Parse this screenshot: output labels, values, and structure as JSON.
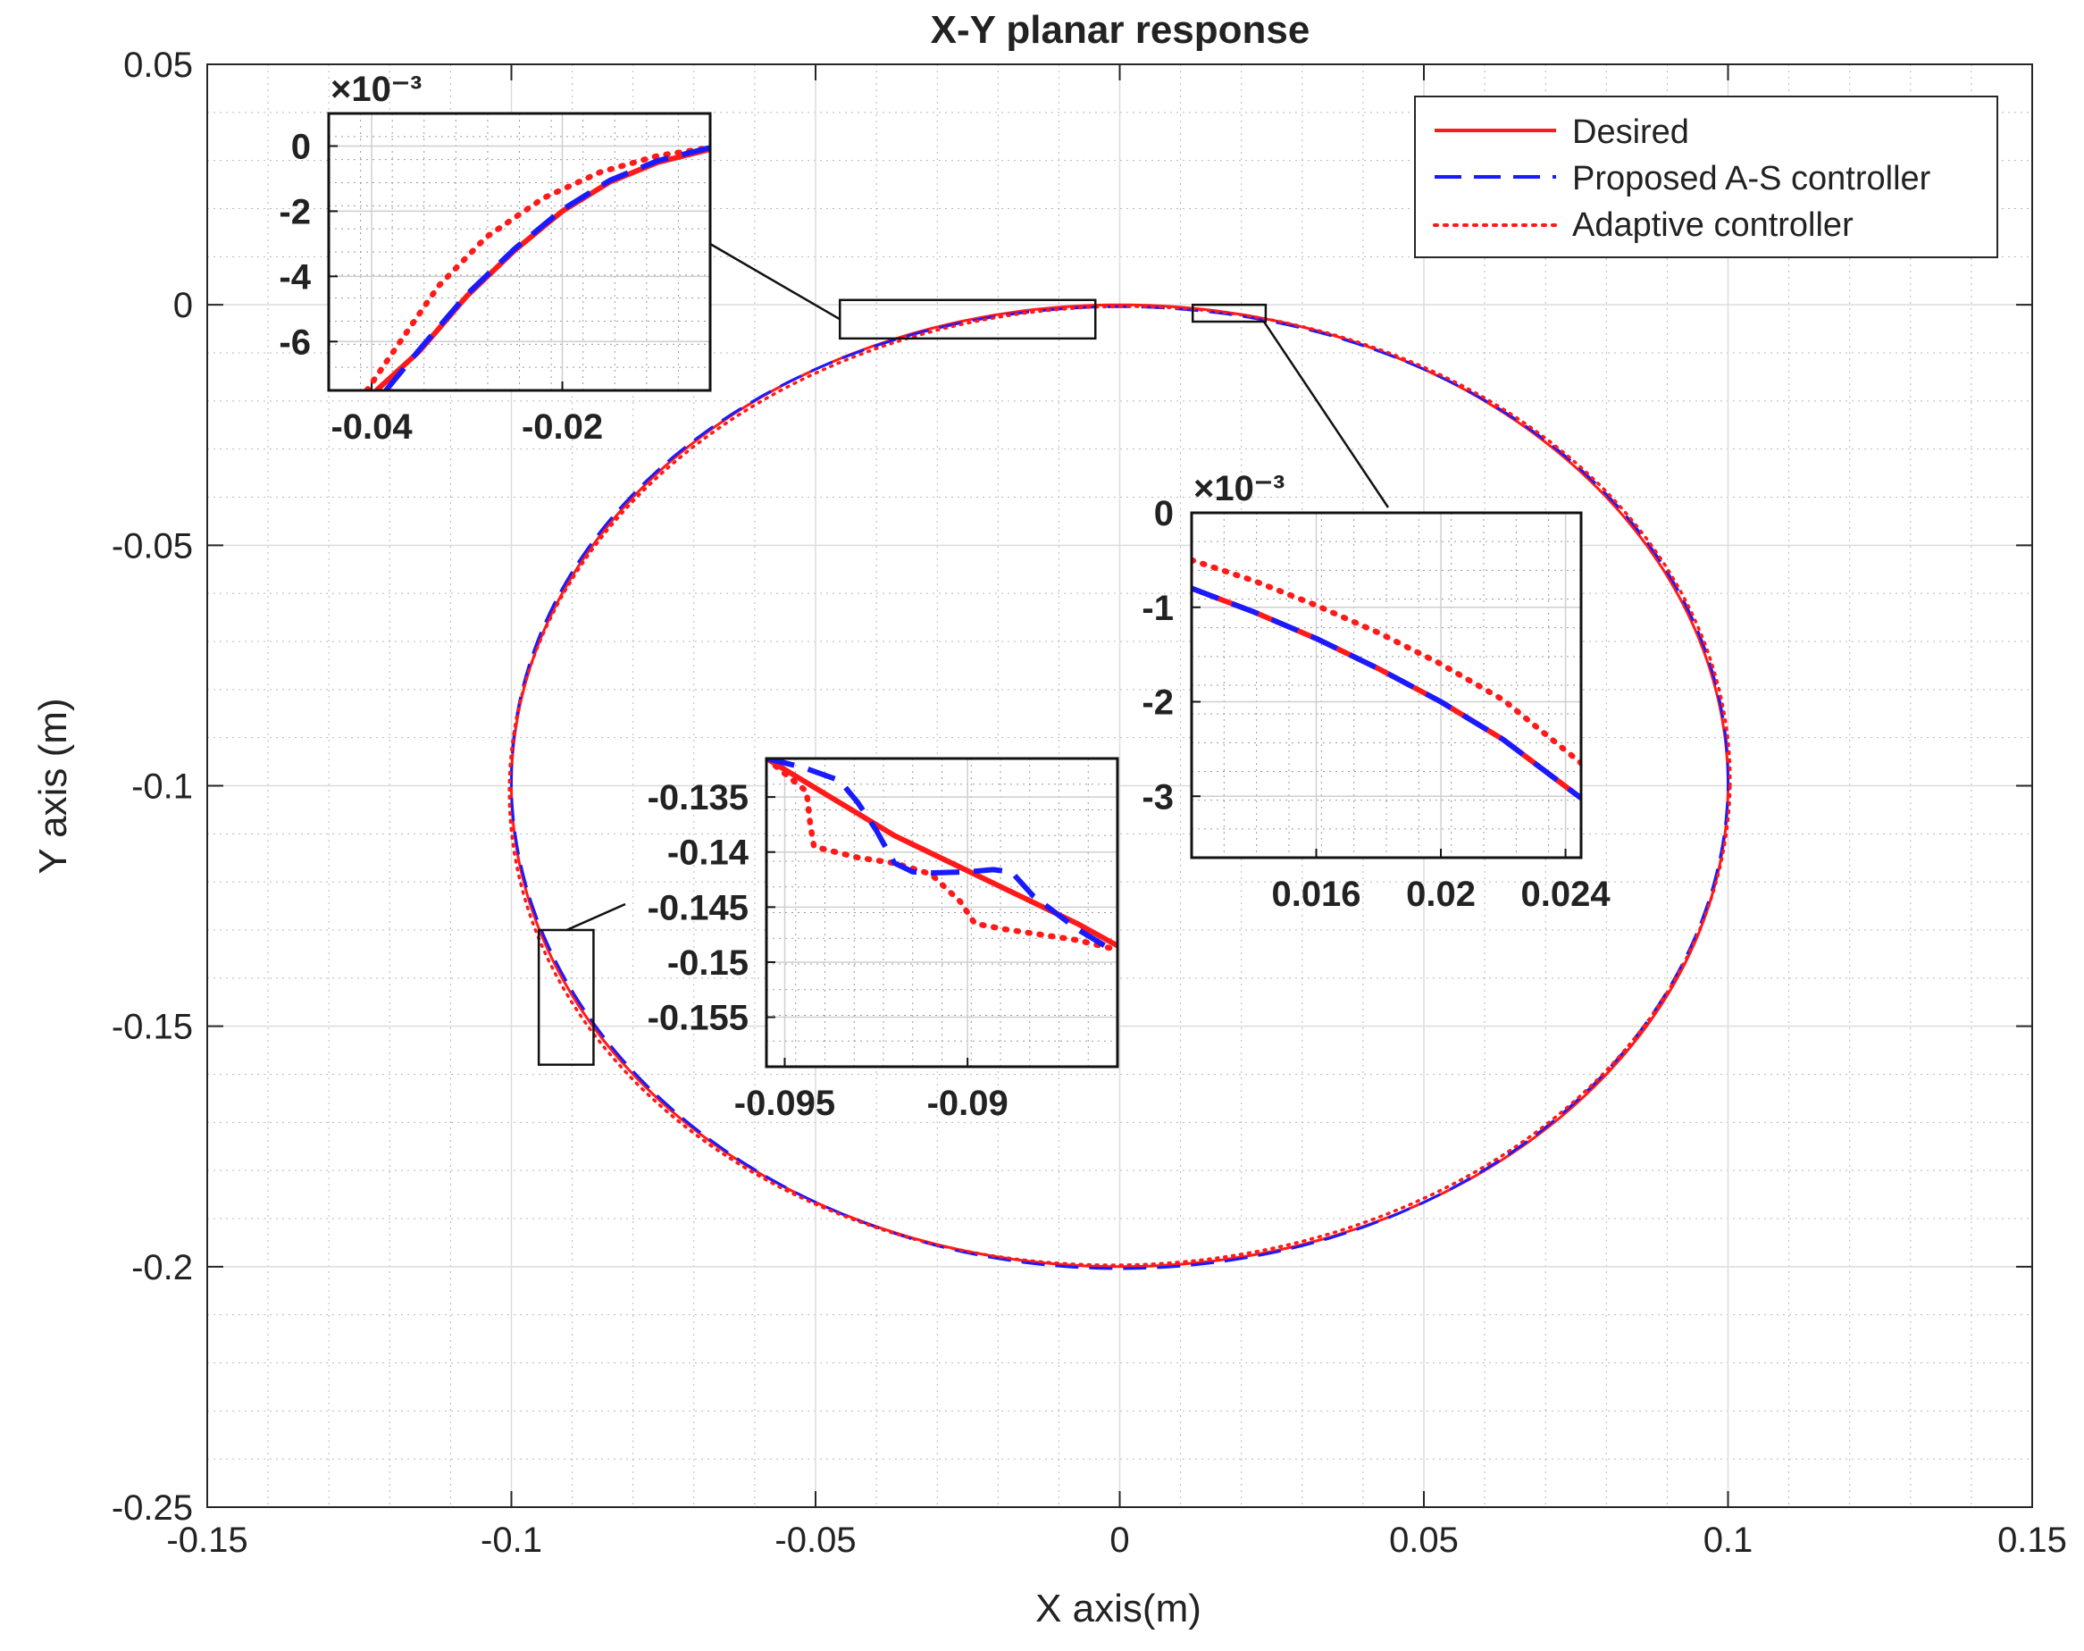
{
  "chart_data": {
    "type": "line",
    "title": "X-Y planar response",
    "xlabel": "X axis(m)",
    "ylabel": "Y axis (m)",
    "xlim": [
      -0.15,
      0.15
    ],
    "ylim": [
      -0.25,
      0.05
    ],
    "xticks": [
      -0.15,
      -0.1,
      -0.05,
      0,
      0.05,
      0.1,
      0.15
    ],
    "yticks": [
      -0.25,
      -0.2,
      -0.15,
      -0.1,
      -0.05,
      0,
      0.05
    ],
    "xtick_labels": [
      "-0.15",
      "-0.1",
      "-0.05",
      "0",
      "0.05",
      "0.1",
      "0.15"
    ],
    "ytick_labels": [
      "-0.25",
      "-0.2",
      "-0.15",
      "-0.1",
      "-0.05",
      "0",
      "0.05"
    ],
    "grid": true,
    "minor_grid": true,
    "legend_position": "top-right",
    "trajectory": {
      "shape": "circle",
      "center": [
        0,
        -0.1
      ],
      "radius": 0.1
    },
    "series": [
      {
        "name": "Desired",
        "color": "#ff1a1a",
        "style": "solid"
      },
      {
        "name": "Proposed A-S controller",
        "color": "#1a1aff",
        "style": "dashed"
      },
      {
        "name": "Adaptive controller",
        "color": "#ff1a1a",
        "style": "dotted"
      }
    ],
    "zoom_regions": [
      {
        "xlim": [
          -0.046,
          -0.004
        ],
        "ylim": [
          -0.007,
          0.001
        ]
      },
      {
        "xlim": [
          0.012,
          0.024
        ],
        "ylim": [
          -0.0035,
          0
        ]
      },
      {
        "xlim": [
          -0.0955,
          -0.0865
        ],
        "ylim": [
          -0.158,
          -0.13
        ]
      }
    ],
    "insets": [
      {
        "exponent_label": "×10⁻³",
        "xlim": [
          -0.0445,
          -0.0045
        ],
        "ylim": [
          -7.5,
          1.0
        ],
        "xticks": [
          -0.04,
          -0.02
        ],
        "xtick_labels": [
          "-0.04",
          "-0.02"
        ],
        "yticks": [
          0,
          -2,
          -4,
          -6
        ],
        "ytick_labels": [
          "0",
          "-2",
          "-4",
          "-6"
        ],
        "series": [
          {
            "name": "Desired",
            "x": [
              -0.0395,
              -0.035,
              -0.03,
              -0.025,
              -0.02,
              -0.015,
              -0.01,
              -0.0045
            ],
            "y": [
              -7.5,
              -6.3,
              -4.6,
              -3.2,
              -2.0,
              -1.1,
              -0.5,
              -0.1
            ]
          },
          {
            "name": "Proposed A-S controller",
            "x": [
              -0.0385,
              -0.035,
              -0.03,
              -0.025,
              -0.02,
              -0.015,
              -0.01,
              -0.0045
            ],
            "y": [
              -7.5,
              -6.25,
              -4.55,
              -3.15,
              -1.95,
              -1.05,
              -0.45,
              -0.05
            ]
          },
          {
            "name": "Adaptive controller",
            "x": [
              -0.0405,
              -0.037,
              -0.033,
              -0.028,
              -0.022,
              -0.016,
              -0.01,
              -0.0045
            ],
            "y": [
              -7.5,
              -6.0,
              -4.3,
              -2.8,
              -1.6,
              -0.8,
              -0.3,
              -0.05
            ]
          }
        ]
      },
      {
        "exponent_label": "×10⁻³",
        "xlim": [
          0.012,
          0.0245
        ],
        "ylim": [
          -3.65,
          0.0
        ],
        "xticks": [
          0.016,
          0.02,
          0.024
        ],
        "xtick_labels": [
          "0.016",
          "0.02",
          "0.024"
        ],
        "yticks": [
          0,
          -1,
          -2,
          -3
        ],
        "ytick_labels": [
          "0",
          "-1",
          "-2",
          "-3"
        ],
        "series": [
          {
            "name": "Desired",
            "x": [
              0.012,
              0.014,
              0.016,
              0.018,
              0.02,
              0.022,
              0.0245
            ],
            "y": [
              -0.8,
              -1.05,
              -1.33,
              -1.65,
              -2.0,
              -2.4,
              -3.02
            ]
          },
          {
            "name": "Proposed A-S controller",
            "x": [
              0.012,
              0.014,
              0.016,
              0.018,
              0.02,
              0.022,
              0.0245
            ],
            "y": [
              -0.8,
              -1.05,
              -1.33,
              -1.65,
              -2.0,
              -2.4,
              -3.02
            ]
          },
          {
            "name": "Adaptive controller",
            "x": [
              0.012,
              0.014,
              0.016,
              0.018,
              0.02,
              0.022,
              0.0245
            ],
            "y": [
              -0.5,
              -0.72,
              -0.98,
              -1.27,
              -1.6,
              -1.98,
              -2.65
            ]
          }
        ]
      },
      {
        "exponent_label": "",
        "xlim": [
          -0.0955,
          -0.0859
        ],
        "ylim": [
          -0.1595,
          -0.1315
        ],
        "xticks": [
          -0.095,
          -0.09
        ],
        "xtick_labels": [
          "-0.095",
          "-0.09"
        ],
        "yticks": [
          -0.135,
          -0.14,
          -0.145,
          -0.15,
          -0.155
        ],
        "ytick_labels": [
          "-0.135",
          "-0.14",
          "-0.145",
          "-0.15",
          "-0.155"
        ],
        "series": [
          {
            "name": "Desired",
            "x": [
              -0.0955,
              -0.094,
              -0.092,
              -0.0895,
              -0.087,
              -0.0859
            ],
            "y": [
              -0.1315,
              -0.1345,
              -0.1385,
              -0.1425,
              -0.1465,
              -0.1485
            ]
          },
          {
            "name": "Proposed A-S controller",
            "x": [
              -0.0955,
              -0.0945,
              -0.0935,
              -0.093,
              -0.0925,
              -0.092,
              -0.0915,
              -0.091,
              -0.09,
              -0.0893,
              -0.0888,
              -0.0882,
              -0.087,
              -0.086
            ],
            "y": [
              -0.1315,
              -0.1323,
              -0.1335,
              -0.1355,
              -0.138,
              -0.141,
              -0.1418,
              -0.1419,
              -0.1418,
              -0.1416,
              -0.1418,
              -0.144,
              -0.147,
              -0.149
            ]
          },
          {
            "name": "Adaptive controller",
            "x": [
              -0.0955,
              -0.0944,
              -0.0943,
              -0.0942,
              -0.093,
              -0.092,
              -0.091,
              -0.0902,
              -0.0898,
              -0.089,
              -0.088,
              -0.087,
              -0.086
            ],
            "y": [
              -0.1315,
              -0.1345,
              -0.1375,
              -0.1395,
              -0.1405,
              -0.141,
              -0.142,
              -0.1445,
              -0.1465,
              -0.147,
              -0.1475,
              -0.148,
              -0.1488
            ]
          }
        ]
      }
    ]
  }
}
